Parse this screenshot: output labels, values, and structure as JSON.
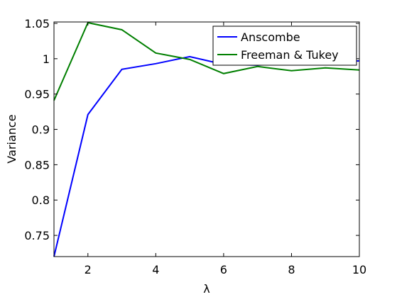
{
  "chart_data": {
    "type": "line",
    "xlabel": "λ",
    "ylabel": "Variance",
    "xlim": [
      1,
      10
    ],
    "ylim": [
      0.72,
      1.052
    ],
    "grid": false,
    "legend_position": "top-right",
    "x_ticks": [
      2,
      4,
      6,
      8,
      10
    ],
    "x_tick_labels": [
      "2",
      "4",
      "6",
      "8",
      "10"
    ],
    "y_ticks": [
      0.75,
      0.8,
      0.85,
      0.9,
      0.95,
      1.0,
      1.05
    ],
    "y_tick_labels": [
      "0.75",
      "0.8",
      "0.85",
      "0.9",
      "0.95",
      "1",
      "1.05"
    ],
    "x": [
      1,
      2,
      3,
      4,
      5,
      6,
      7,
      8,
      9,
      10
    ],
    "series": [
      {
        "name": "Anscombe",
        "color": "#0000ff",
        "values": [
          0.72,
          0.921,
          0.985,
          0.993,
          1.003,
          0.992,
          0.991,
          0.994,
          0.995,
          0.997
        ]
      },
      {
        "name": "Freeman & Tukey",
        "color": "#007f00",
        "values": [
          0.941,
          1.051,
          1.041,
          1.008,
          0.999,
          0.979,
          0.989,
          0.983,
          0.987,
          0.984
        ]
      }
    ]
  }
}
